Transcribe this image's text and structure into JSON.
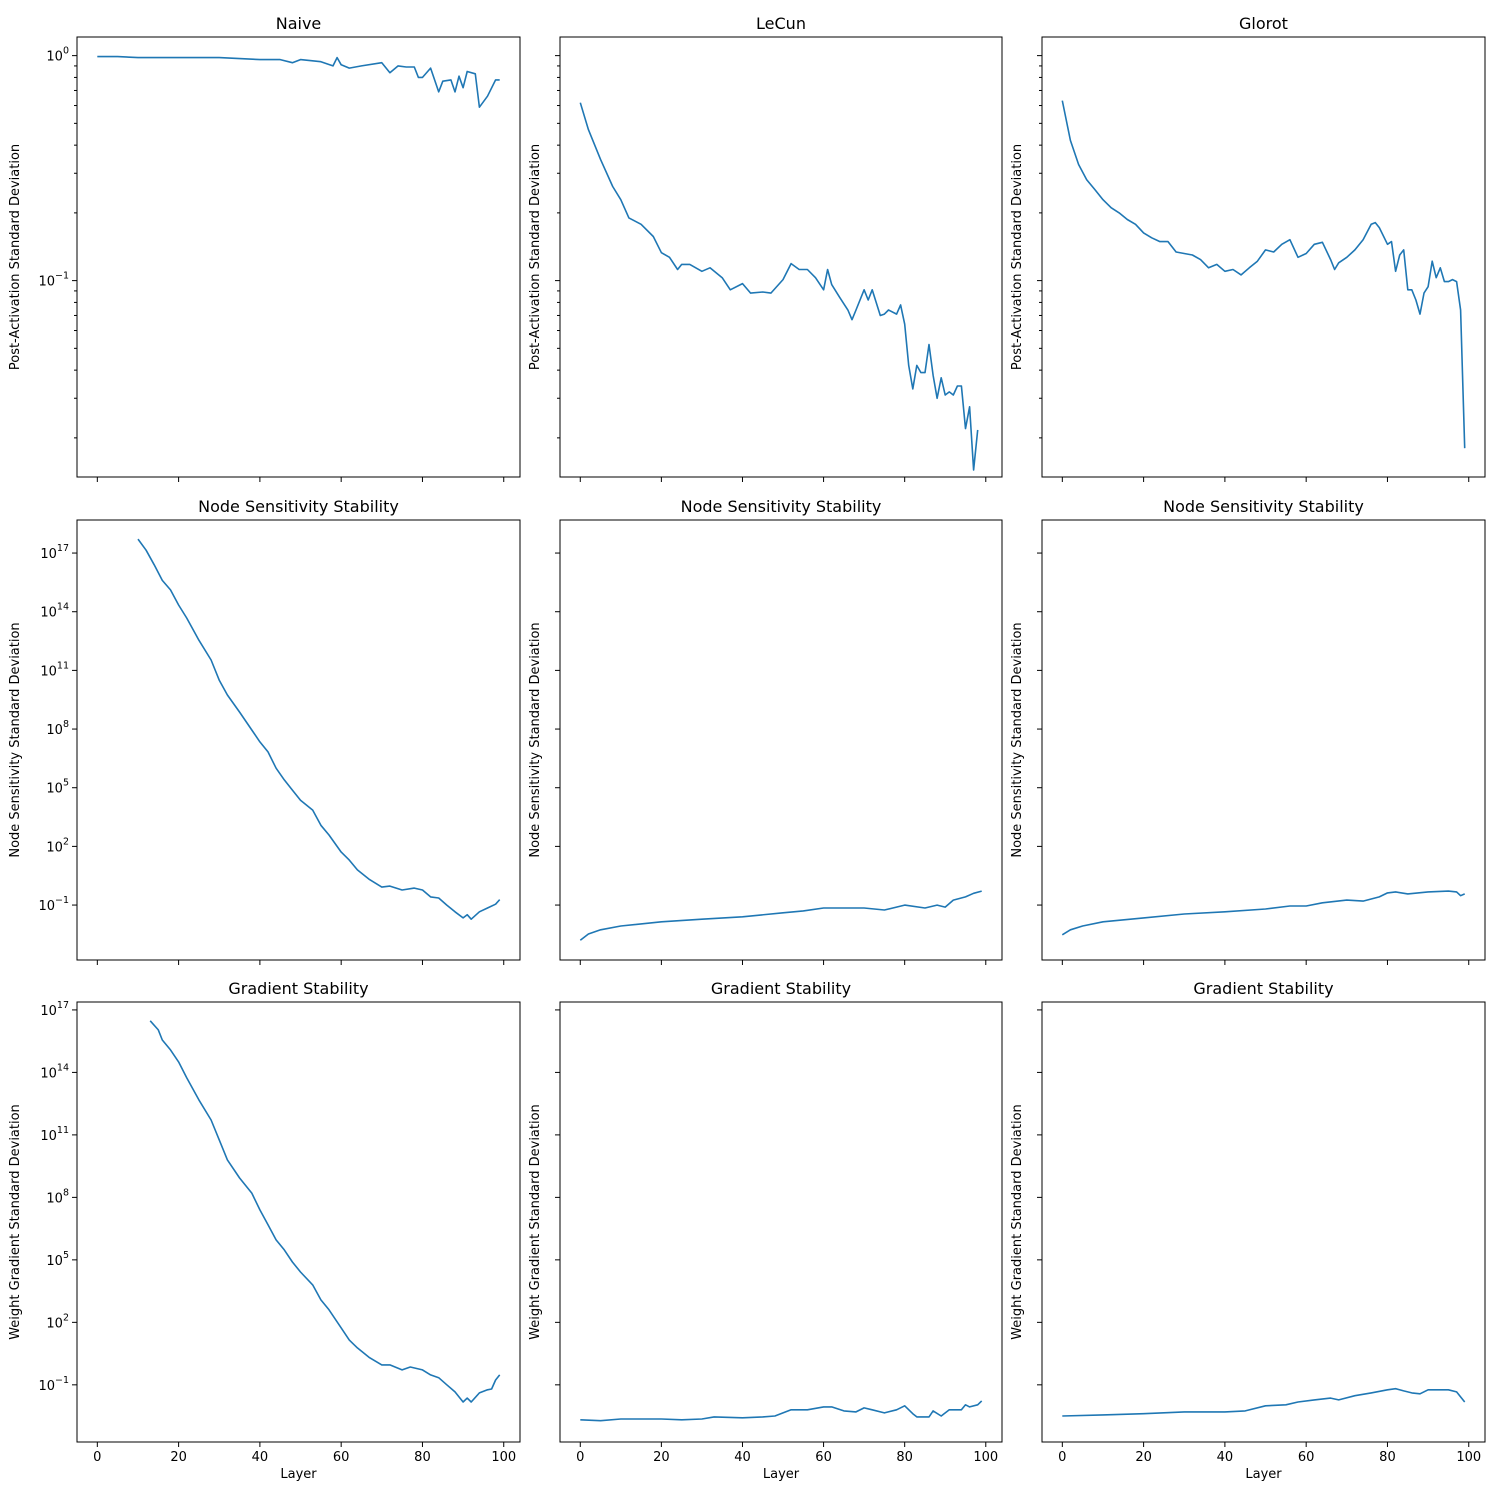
{
  "chart_data": [
    {
      "type": "line",
      "title": "Naive",
      "xlabel": "",
      "ylabel": "Post-Activation Standard Deviation",
      "xlim": [
        -5,
        104
      ],
      "ylim": [
        0.0134,
        1.21
      ],
      "yscale": "log",
      "grid": false,
      "color": "#1f77b4",
      "xticks": [
        0,
        20,
        40,
        60,
        80,
        100
      ],
      "yticks": [
        {
          "base": "10",
          "exp": "0",
          "value": 1
        },
        {
          "base": "10",
          "exp": "−1",
          "value": 0.1
        }
      ],
      "x": [
        0,
        5,
        10,
        15,
        20,
        25,
        30,
        35,
        40,
        45,
        48,
        50,
        55,
        58,
        59,
        60,
        62,
        65,
        70,
        72,
        74,
        76,
        78,
        79,
        80,
        82,
        84,
        85,
        87,
        88,
        89,
        90,
        91,
        93,
        94,
        96,
        98,
        99
      ],
      "y": [
        0.99,
        0.99,
        0.98,
        0.98,
        0.98,
        0.98,
        0.98,
        0.97,
        0.96,
        0.96,
        0.93,
        0.96,
        0.94,
        0.9,
        0.98,
        0.91,
        0.88,
        0.9,
        0.93,
        0.84,
        0.9,
        0.89,
        0.89,
        0.8,
        0.8,
        0.88,
        0.69,
        0.77,
        0.78,
        0.69,
        0.81,
        0.72,
        0.85,
        0.83,
        0.59,
        0.66,
        0.78,
        0.78
      ]
    },
    {
      "type": "line",
      "title": "LeCun",
      "xlabel": "",
      "ylabel": "Post-Activation Standard Deviation",
      "xlim": [
        -5,
        104
      ],
      "ylim": [
        0.0134,
        1.21
      ],
      "yscale": "log",
      "grid": false,
      "color": "#1f77b4",
      "xticks": [
        0,
        20,
        40,
        60,
        80,
        100
      ],
      "yticks": [],
      "x": [
        0,
        2,
        5,
        8,
        10,
        12,
        15,
        18,
        20,
        22,
        24,
        25,
        27,
        30,
        32,
        35,
        37,
        40,
        42,
        45,
        47,
        50,
        52,
        54,
        56,
        58,
        60,
        61,
        62,
        64,
        66,
        67,
        68,
        70,
        71,
        72,
        74,
        75,
        76,
        78,
        79,
        80,
        81,
        82,
        83,
        84,
        85,
        86,
        87,
        88,
        89,
        90,
        91,
        92,
        93,
        94,
        95,
        96,
        97,
        98
      ],
      "y": [
        0.618,
        0.469,
        0.345,
        0.262,
        0.229,
        0.19,
        0.178,
        0.157,
        0.133,
        0.127,
        0.112,
        0.118,
        0.118,
        0.11,
        0.114,
        0.103,
        0.091,
        0.097,
        0.088,
        0.089,
        0.088,
        0.101,
        0.119,
        0.112,
        0.112,
        0.103,
        0.091,
        0.112,
        0.096,
        0.084,
        0.074,
        0.067,
        0.074,
        0.091,
        0.082,
        0.091,
        0.07,
        0.071,
        0.074,
        0.071,
        0.078,
        0.064,
        0.042,
        0.033,
        0.042,
        0.039,
        0.039,
        0.052,
        0.038,
        0.03,
        0.037,
        0.031,
        0.032,
        0.031,
        0.034,
        0.034,
        0.022,
        0.0275,
        0.0144,
        0.0217
      ]
    },
    {
      "type": "line",
      "title": "Glorot",
      "xlabel": "",
      "ylabel": "Post-Activation Standard Deviation",
      "xlim": [
        -5,
        104
      ],
      "ylim": [
        0.0134,
        1.21
      ],
      "yscale": "log",
      "grid": false,
      "color": "#1f77b4",
      "xticks": [
        0,
        20,
        40,
        60,
        80,
        100
      ],
      "yticks": [],
      "x": [
        0,
        2,
        4,
        6,
        8,
        10,
        12,
        14,
        16,
        18,
        20,
        22,
        24,
        26,
        28,
        30,
        32,
        34,
        36,
        38,
        40,
        42,
        44,
        46,
        48,
        50,
        52,
        54,
        56,
        58,
        60,
        62,
        64,
        66,
        67,
        68,
        70,
        72,
        74,
        76,
        77,
        78,
        80,
        81,
        82,
        83,
        84,
        85,
        86,
        87,
        88,
        89,
        90,
        91,
        92,
        93,
        94,
        95,
        96,
        97,
        98,
        99
      ],
      "y": [
        0.631,
        0.42,
        0.328,
        0.281,
        0.254,
        0.229,
        0.211,
        0.2,
        0.187,
        0.178,
        0.163,
        0.155,
        0.149,
        0.149,
        0.134,
        0.132,
        0.13,
        0.124,
        0.114,
        0.118,
        0.11,
        0.112,
        0.106,
        0.114,
        0.122,
        0.137,
        0.134,
        0.145,
        0.152,
        0.127,
        0.132,
        0.145,
        0.148,
        0.124,
        0.112,
        0.12,
        0.127,
        0.137,
        0.152,
        0.178,
        0.181,
        0.172,
        0.145,
        0.149,
        0.11,
        0.13,
        0.137,
        0.091,
        0.091,
        0.082,
        0.071,
        0.088,
        0.094,
        0.122,
        0.103,
        0.114,
        0.099,
        0.099,
        0.101,
        0.099,
        0.074,
        0.018
      ]
    },
    {
      "type": "line",
      "title": "Node Sensitivity Stability",
      "xlabel": "",
      "ylabel": "Node Sensitivity Standard Deviation",
      "xlim": [
        -5,
        104
      ],
      "ylim": [
        0.000155,
        4.9e+18
      ],
      "yscale": "log",
      "grid": false,
      "color": "#1f77b4",
      "xticks": [
        0,
        20,
        40,
        60,
        80,
        100
      ],
      "yticks": [
        {
          "base": "10",
          "exp": "−1",
          "value": 0.1
        },
        {
          "base": "10",
          "exp": "2",
          "value": 100
        },
        {
          "base": "10",
          "exp": "5",
          "value": 100000.0
        },
        {
          "base": "10",
          "exp": "8",
          "value": 100000000.0
        },
        {
          "base": "10",
          "exp": "11",
          "value": 100000000000.0
        },
        {
          "base": "10",
          "exp": "14",
          "value": 100000000000000.0
        },
        {
          "base": "10",
          "exp": "17",
          "value": 1e+17
        }
      ],
      "x": [
        10,
        12,
        14,
        16,
        18,
        20,
        22,
        25,
        28,
        30,
        32,
        35,
        38,
        40,
        42,
        44,
        46,
        48,
        50,
        53,
        55,
        57,
        60,
        62,
        64,
        67,
        70,
        72,
        75,
        78,
        80,
        82,
        84,
        86,
        88,
        90,
        91,
        92,
        94,
        96,
        98,
        99
      ],
      "y": [
        5.2e+17,
        1.4e+17,
        2.5e+16,
        4000000000000000.0,
        1300000000000000.0,
        220000000000000.0,
        48000000000000.0,
        3500000000000.0,
        340000000000.0,
        32000000000.0,
        5500000000.0,
        740000000.0,
        89000000.0,
        22000000.0,
        6800000.0,
        1000000.0,
        250000.0,
        76000.0,
        23000.0,
        7200.0,
        1200.0,
        380,
        51,
        20,
        6.3,
        2.0,
        0.83,
        0.93,
        0.59,
        0.74,
        0.59,
        0.26,
        0.23,
        0.1,
        0.045,
        0.022,
        0.032,
        0.019,
        0.045,
        0.071,
        0.11,
        0.19
      ]
    },
    {
      "type": "line",
      "title": "Node Sensitivity Stability",
      "xlabel": "",
      "ylabel": "Node Sensitivity Standard Deviation",
      "xlim": [
        -5,
        104
      ],
      "ylim": [
        0.000155,
        4.9e+18
      ],
      "yscale": "log",
      "grid": false,
      "color": "#1f77b4",
      "xticks": [
        0,
        20,
        40,
        60,
        80,
        100
      ],
      "yticks": [],
      "x": [
        0,
        2,
        5,
        10,
        20,
        30,
        40,
        50,
        55,
        60,
        65,
        70,
        75,
        80,
        85,
        88,
        90,
        92,
        95,
        97,
        99
      ],
      "y": [
        0.0016,
        0.0033,
        0.0054,
        0.0085,
        0.014,
        0.019,
        0.025,
        0.04,
        0.05,
        0.071,
        0.071,
        0.071,
        0.056,
        0.1,
        0.071,
        0.1,
        0.079,
        0.18,
        0.26,
        0.4,
        0.52
      ]
    },
    {
      "type": "line",
      "title": "Node Sensitivity Stability",
      "xlabel": "",
      "ylabel": "Node Sensitivity Standard Deviation",
      "xlim": [
        -5,
        104
      ],
      "ylim": [
        0.000155,
        4.9e+18
      ],
      "yscale": "log",
      "grid": false,
      "color": "#1f77b4",
      "xticks": [
        0,
        20,
        40,
        60,
        80,
        100
      ],
      "yticks": [],
      "x": [
        0,
        2,
        5,
        10,
        20,
        30,
        40,
        50,
        56,
        60,
        64,
        70,
        74,
        78,
        80,
        82,
        85,
        90,
        95,
        97,
        98,
        99
      ],
      "y": [
        0.003,
        0.0054,
        0.0085,
        0.014,
        0.022,
        0.035,
        0.045,
        0.063,
        0.089,
        0.089,
        0.13,
        0.18,
        0.16,
        0.26,
        0.42,
        0.47,
        0.37,
        0.47,
        0.52,
        0.47,
        0.3,
        0.37
      ]
    },
    {
      "type": "line",
      "title": "Gradient Stability",
      "xlabel": "Layer",
      "ylabel": "Weight Gradient Standard Deviation",
      "xlim": [
        -5,
        104
      ],
      "ylim": [
        0.00018,
        2.4e+17
      ],
      "yscale": "log",
      "grid": false,
      "color": "#1f77b4",
      "xticks": [
        0,
        20,
        40,
        60,
        80,
        100
      ],
      "yticks": [
        {
          "base": "10",
          "exp": "−1",
          "value": 0.1
        },
        {
          "base": "10",
          "exp": "2",
          "value": 100
        },
        {
          "base": "10",
          "exp": "5",
          "value": 100000.0
        },
        {
          "base": "10",
          "exp": "8",
          "value": 100000000.0
        },
        {
          "base": "10",
          "exp": "11",
          "value": 100000000000.0
        },
        {
          "base": "10",
          "exp": "14",
          "value": 100000000000000.0
        },
        {
          "base": "10",
          "exp": "17",
          "value": 1e+17
        }
      ],
      "x": [
        13,
        15,
        16,
        18,
        20,
        22,
        25,
        28,
        30,
        32,
        35,
        38,
        40,
        42,
        44,
        46,
        48,
        50,
        53,
        55,
        57,
        60,
        62,
        64,
        67,
        70,
        72,
        75,
        77,
        80,
        82,
        84,
        86,
        88,
        90,
        91,
        92,
        94,
        96,
        97,
        98,
        99
      ],
      "y": [
        3e+16,
        1.1e+16,
        3600000000000000.0,
        1200000000000000.0,
        320000000000000.0,
        55000000000000.0,
        4800000000000.0,
        520000000000.0,
        58000000000.0,
        6300000000.0,
        850000000.0,
        160000000.0,
        25000000.0,
        4800000.0,
        910000.0,
        300000.0,
        79000.0,
        26000.0,
        6300.0,
        1200.0,
        400,
        54,
        14,
        5.9,
        2.0,
        0.91,
        0.91,
        0.52,
        0.72,
        0.52,
        0.3,
        0.22,
        0.1,
        0.046,
        0.015,
        0.023,
        0.015,
        0.041,
        0.058,
        0.063,
        0.17,
        0.3
      ]
    },
    {
      "type": "line",
      "title": "Gradient Stability",
      "xlabel": "Layer",
      "ylabel": "Weight Gradient Standard Deviation",
      "xlim": [
        -5,
        104
      ],
      "ylim": [
        0.00018,
        2.4e+17
      ],
      "yscale": "log",
      "grid": false,
      "color": "#1f77b4",
      "xticks": [
        0,
        20,
        40,
        60,
        80,
        100
      ],
      "yticks": [],
      "x": [
        0,
        5,
        10,
        20,
        25,
        30,
        33,
        40,
        45,
        48,
        52,
        56,
        60,
        62,
        65,
        68,
        70,
        72,
        75,
        78,
        80,
        82,
        83,
        86,
        87,
        89,
        91,
        94,
        95,
        96,
        98,
        99
      ],
      "y": [
        0.0021,
        0.0019,
        0.0023,
        0.0023,
        0.0021,
        0.0023,
        0.0029,
        0.0026,
        0.0029,
        0.0032,
        0.0063,
        0.0063,
        0.0087,
        0.0087,
        0.0056,
        0.005,
        0.0078,
        0.0063,
        0.0045,
        0.0063,
        0.0098,
        0.0041,
        0.0029,
        0.0029,
        0.0056,
        0.0032,
        0.0063,
        0.0063,
        0.011,
        0.0087,
        0.011,
        0.017
      ]
    },
    {
      "type": "line",
      "title": "Gradient Stability",
      "xlabel": "Layer",
      "ylabel": "Weight Gradient Standard Deviation",
      "xlim": [
        -5,
        104
      ],
      "ylim": [
        0.00018,
        2.4e+17
      ],
      "yscale": "log",
      "grid": false,
      "color": "#1f77b4",
      "xticks": [
        0,
        20,
        40,
        60,
        80,
        100
      ],
      "yticks": [],
      "x": [
        0,
        10,
        20,
        30,
        40,
        45,
        50,
        55,
        58,
        62,
        66,
        68,
        72,
        76,
        80,
        82,
        84,
        86,
        88,
        90,
        95,
        97,
        99
      ],
      "y": [
        0.0032,
        0.0036,
        0.0041,
        0.005,
        0.005,
        0.0056,
        0.0098,
        0.011,
        0.015,
        0.019,
        0.023,
        0.019,
        0.03,
        0.041,
        0.058,
        0.065,
        0.051,
        0.041,
        0.037,
        0.058,
        0.058,
        0.046,
        0.015
      ]
    }
  ]
}
